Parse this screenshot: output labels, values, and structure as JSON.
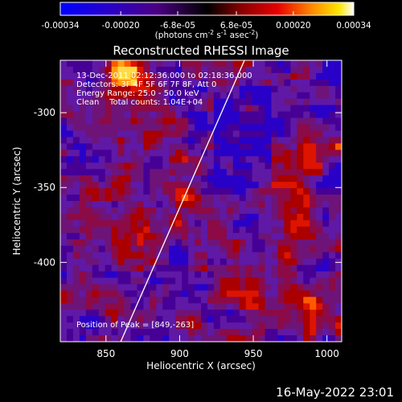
{
  "chart_data": {
    "type": "heatmap",
    "title": "Reconstructed RHESSI Image",
    "xlabel": "Heliocentric X (arcsec)",
    "ylabel": "Heliocentric Y (arcsec)",
    "xlim": [
      819,
      1010
    ],
    "ylim": [
      -453,
      -265
    ],
    "xticks": [
      850,
      900,
      950,
      1000
    ],
    "yticks": [
      -300,
      -350,
      -400
    ],
    "colorbar": {
      "range": [
        -0.00034,
        0.00034
      ],
      "ticks": [
        "-0.00034",
        "-0.00020",
        "-6.8e-05",
        "6.8e-05",
        "0.00020",
        "0.00034"
      ],
      "tick_values": [
        -0.00034,
        -0.0002,
        -6.8e-05,
        6.8e-05,
        0.0002,
        0.00034
      ],
      "label": "(photons cm",
      "label_parts": [
        "(photons cm",
        "-2",
        " s",
        "-1",
        " asec",
        "-2",
        ")"
      ]
    },
    "annotations": [
      "13-Dec-2011 02:12:36.000 to 02:18:36.000",
      "Detectors: 3F 4F 5F 6F 7F 8F, Att 0",
      "Energy Range: 25.0 - 50.0 keV",
      "Clean    Total counts: 1.04E+04"
    ],
    "peak_label": "Position of Peak = [849,-263]",
    "limb_line": {
      "x": [
        860,
        944
      ],
      "y": [
        -453,
        -265
      ]
    },
    "colormap": "RHESSI (blue-purple-red-orange-yellow-white)",
    "grid": false
  },
  "footer": {
    "date": "16-May-2022 23:01"
  }
}
